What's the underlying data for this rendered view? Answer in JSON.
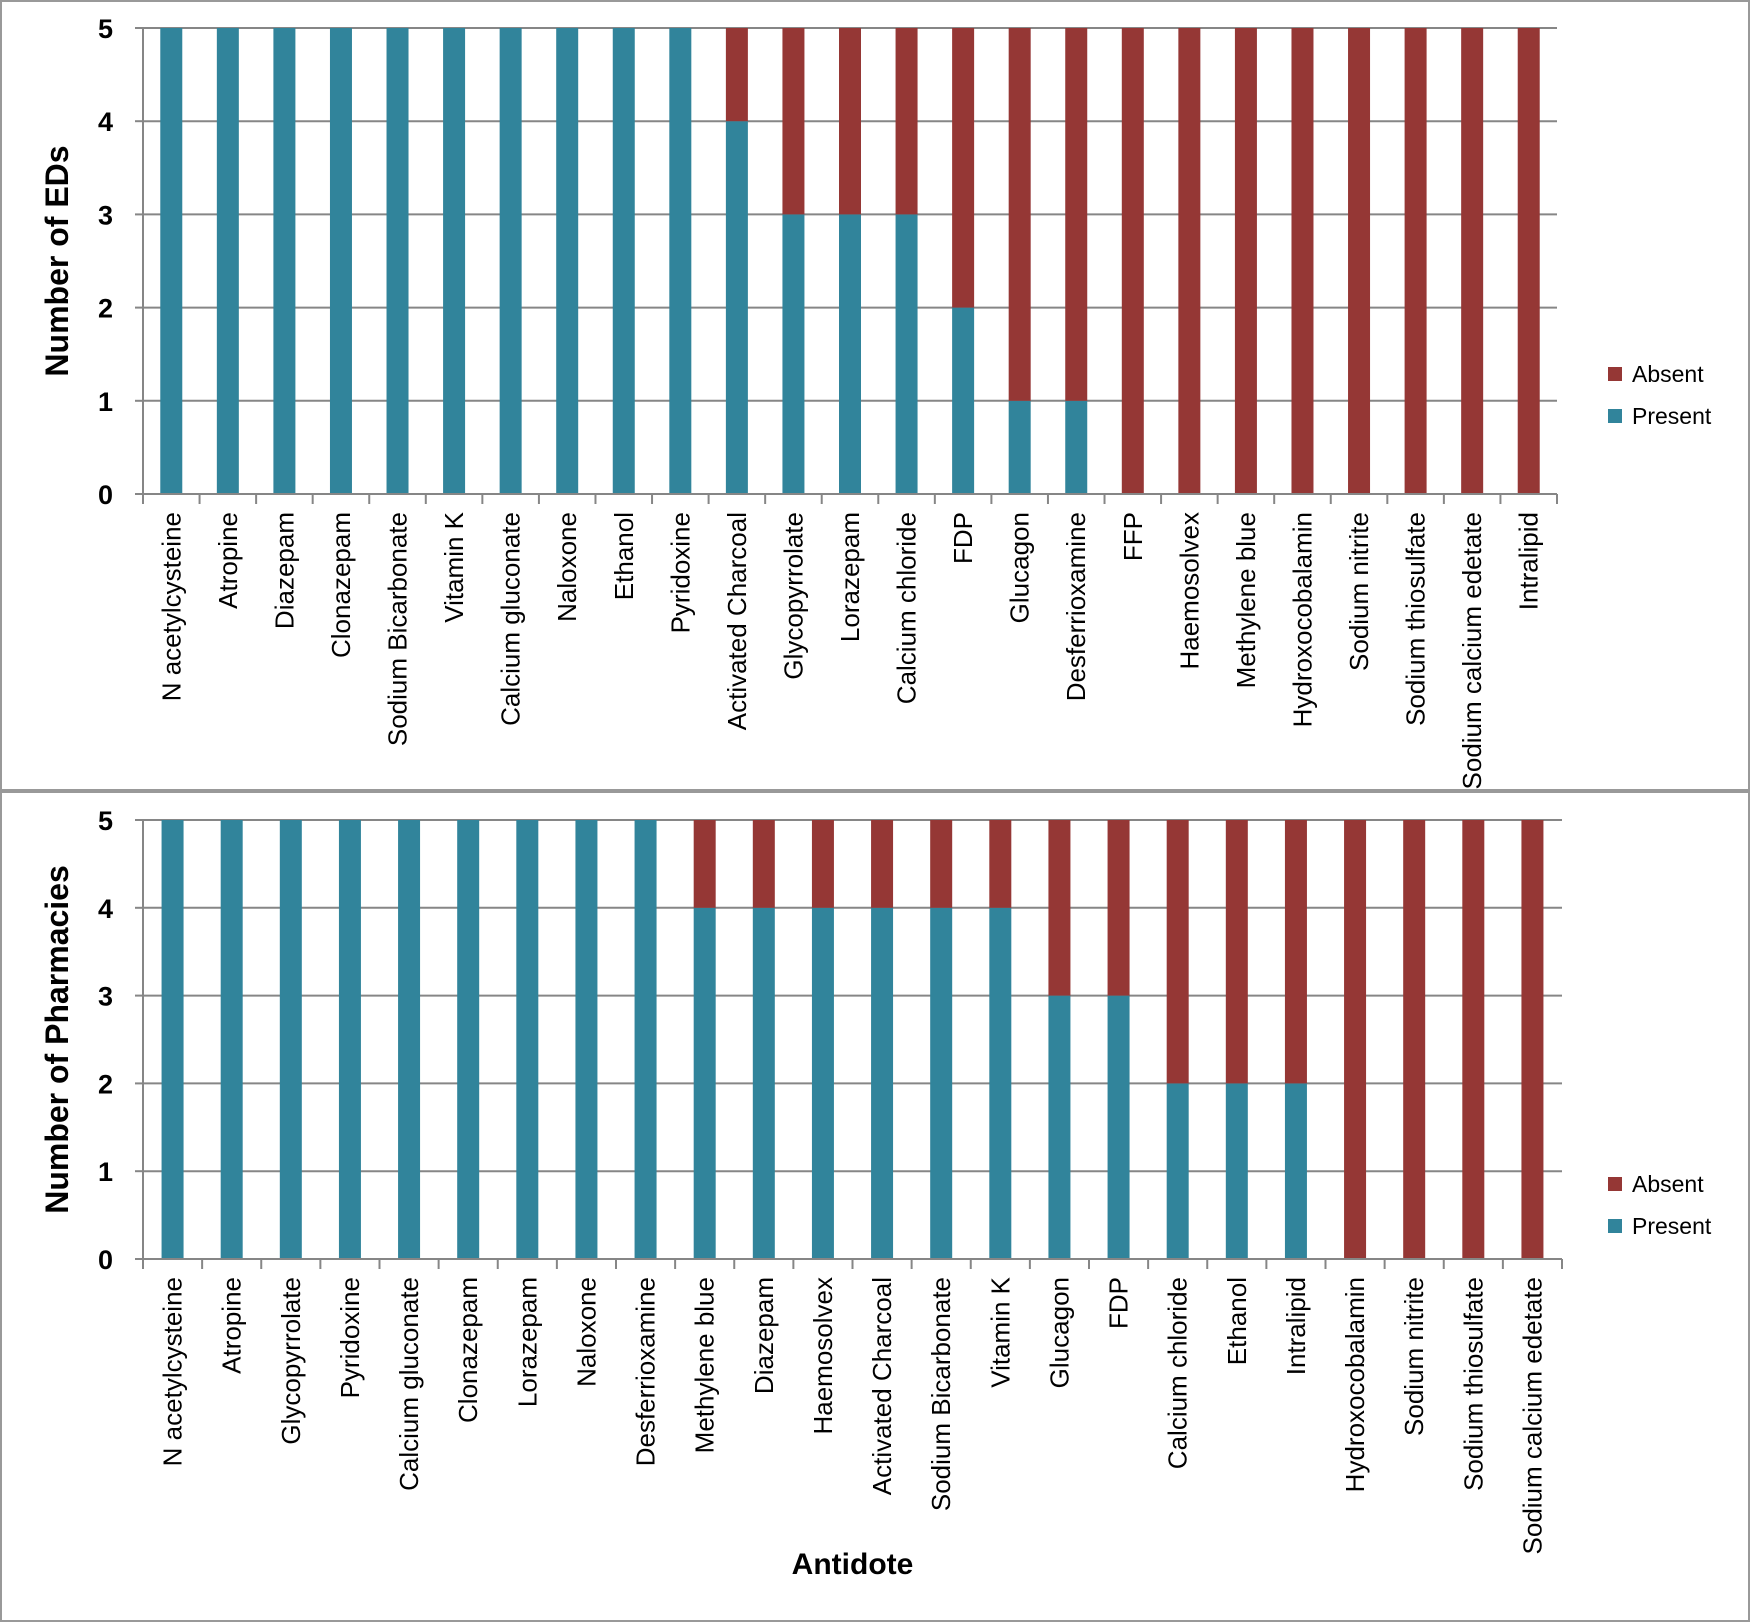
{
  "colors": {
    "present": "#31849b",
    "absent": "#953735",
    "grid": "#868686",
    "axis": "#868686",
    "frame": "#999999"
  },
  "chart_data": [
    {
      "type": "bar",
      "stacked": true,
      "title": "",
      "xlabel": "",
      "ylabel": "Number of EDs",
      "ylim": [
        0,
        5
      ],
      "yticks": [
        "0",
        "1",
        "2",
        "3",
        "4",
        "5"
      ],
      "grid": true,
      "legend": [
        "Absent",
        "Present"
      ],
      "legend_position": "right",
      "categories": [
        "N acetylcysteine",
        "Atropine",
        "Diazepam",
        "Clonazepam",
        "Sodium Bicarbonate",
        "Vitamin K",
        "Calcium gluconate",
        "Naloxone",
        "Ethanol",
        "Pyridoxine",
        "Activated Charcoal",
        "Glycopyrrolate",
        "Lorazepam",
        "Calcium chloride",
        "FDP",
        "Glucagon",
        "Desferrioxamine",
        "FFP",
        "Haemosolvex",
        "Methylene blue",
        "Hydroxocobalamin",
        "Sodium nitrite",
        "Sodium thiosulfate",
        "Sodium calcium edetate",
        "Intralipid"
      ],
      "series": [
        {
          "name": "Present",
          "values": [
            5,
            5,
            5,
            5,
            5,
            5,
            5,
            5,
            5,
            5,
            4,
            3,
            3,
            3,
            2,
            1,
            1,
            0,
            0,
            0,
            0,
            0,
            0,
            0,
            0
          ]
        },
        {
          "name": "Absent",
          "values": [
            0,
            0,
            0,
            0,
            0,
            0,
            0,
            0,
            0,
            0,
            1,
            2,
            2,
            2,
            3,
            4,
            4,
            5,
            5,
            5,
            5,
            5,
            5,
            5,
            5
          ]
        }
      ]
    },
    {
      "type": "bar",
      "stacked": true,
      "title": "",
      "xlabel": "Antidote",
      "ylabel": "Number of Pharmacies",
      "ylim": [
        0,
        5
      ],
      "yticks": [
        "0",
        "1",
        "2",
        "3",
        "4",
        "5"
      ],
      "grid": true,
      "legend": [
        "Absent",
        "Present"
      ],
      "legend_position": "right",
      "categories": [
        "N acetylcysteine",
        "Atropine",
        "Glycopyrrolate",
        "Pyridoxine",
        "Calcium gluconate",
        "Clonazepam",
        "Lorazepam",
        "Naloxone",
        "Desferrioxamine",
        "Methylene blue",
        "Diazepam",
        "Haemosolvex",
        "Activated Charcoal",
        "Sodium Bicarbonate",
        "Vitamin K",
        "Glucagon",
        "FDP",
        "Calcium chloride",
        "Ethanol",
        "Intralipid",
        "Hydroxocobalamin",
        "Sodium nitrite",
        "Sodium thiosulfate",
        "Sodium calcium edetate"
      ],
      "series": [
        {
          "name": "Present",
          "values": [
            5,
            5,
            5,
            5,
            5,
            5,
            5,
            5,
            5,
            4,
            4,
            4,
            4,
            4,
            4,
            3,
            3,
            2,
            2,
            2,
            0,
            0,
            0,
            0
          ]
        },
        {
          "name": "Absent",
          "values": [
            0,
            0,
            0,
            0,
            0,
            0,
            0,
            0,
            0,
            1,
            1,
            1,
            1,
            1,
            1,
            2,
            2,
            3,
            3,
            3,
            5,
            5,
            5,
            5
          ]
        }
      ]
    }
  ]
}
